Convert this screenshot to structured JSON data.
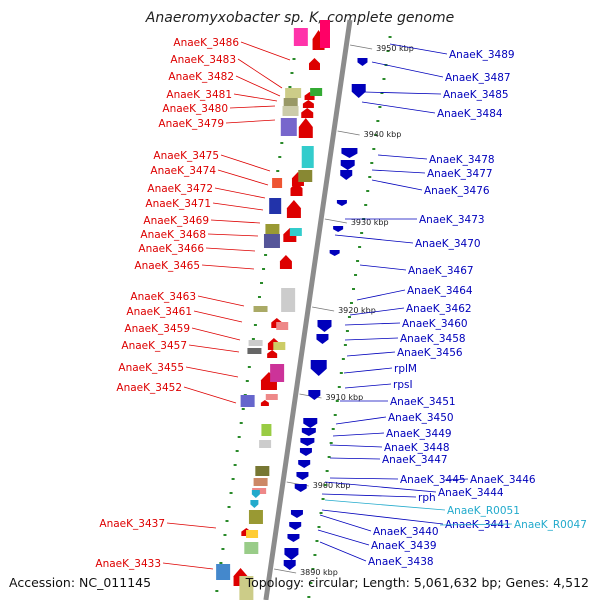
{
  "title": "Anaeromyxobacter sp. K, complete genome",
  "footer": {
    "accession": "Accession: NC_011145",
    "topology": "Topology: circular; Length: 5,061,632 bp; Genes: 4,512"
  },
  "colors": {
    "minus_strand": "#dd0000",
    "plus_strand": "#0000bb",
    "rna": "#22aacc",
    "backbone": "#8c8c8c"
  },
  "kbp_ticks": [
    "3950 kbp",
    "3940 kbp",
    "3930 kbp",
    "3920 kbp",
    "3910 kbp",
    "3900 kbp",
    "3890 kbp"
  ],
  "left_labels": [
    "AnaeK_3486",
    "AnaeK_3483",
    "AnaeK_3482",
    "AnaeK_3481",
    "AnaeK_3480",
    "AnaeK_3479",
    "AnaeK_3475",
    "AnaeK_3474",
    "AnaeK_3472",
    "AnaeK_3471",
    "AnaeK_3469",
    "AnaeK_3468",
    "AnaeK_3466",
    "AnaeK_3465",
    "AnaeK_3463",
    "AnaeK_3461",
    "AnaeK_3459",
    "AnaeK_3457",
    "AnaeK_3455",
    "AnaeK_3452",
    "AnaeK_3437",
    "AnaeK_3433"
  ],
  "right_labels": [
    "AnaeK_3489",
    "AnaeK_3487",
    "AnaeK_3485",
    "AnaeK_3484",
    "AnaeK_3478",
    "AnaeK_3477",
    "AnaeK_3476",
    "AnaeK_3473",
    "AnaeK_3470",
    "AnaeK_3467",
    "AnaeK_3464",
    "AnaeK_3462",
    "AnaeK_3460",
    "AnaeK_3458",
    "AnaeK_3456",
    "rplM",
    "rpsI",
    "AnaeK_3451",
    "AnaeK_3450",
    "AnaeK_3449",
    "AnaeK_3448",
    "AnaeK_3447",
    "AnaeK_3445",
    "AnaeK_3446",
    "AnaeK_3444",
    "rph",
    "AnaeK_R0051",
    "AnaeK_3441",
    "AnaeK_R0047",
    "AnaeK_3440",
    "AnaeK_3439",
    "AnaeK_3438"
  ]
}
